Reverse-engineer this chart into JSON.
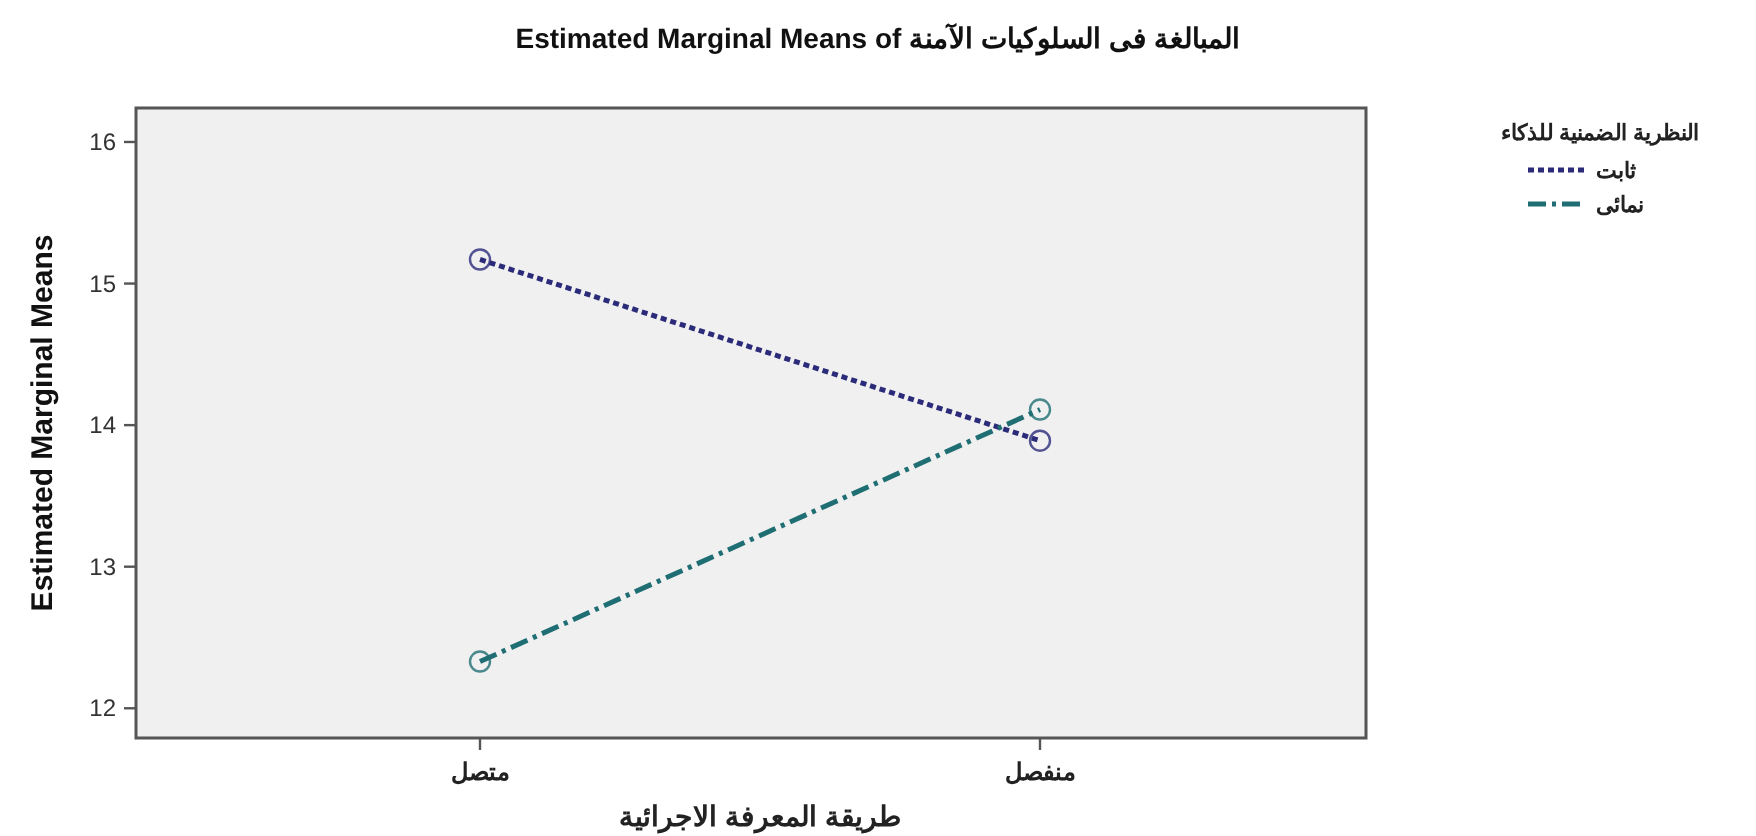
{
  "chart_data": {
    "type": "line",
    "title": "Estimated Marginal Means of المبالغة فى السلوكيات الآمنة",
    "xlabel": "طريقة المعرفة الاجرائية",
    "ylabel": "Estimated Marginal Means",
    "legend_title": "النظرية الضمنية للذكاء",
    "categories": [
      "متصل",
      "منفصل"
    ],
    "series": [
      {
        "name": "ثابت",
        "color": "#2b2b7a",
        "line_style": "dotted",
        "values": [
          15.17,
          13.89
        ]
      },
      {
        "name": "نمائى",
        "color": "#1f6e73",
        "line_style": "dashed",
        "values": [
          12.33,
          14.11
        ]
      }
    ],
    "ylim": [
      11.79,
      16.24
    ],
    "yticks": [
      12,
      13,
      14,
      15,
      16
    ],
    "grid": false,
    "legend": "right",
    "marker": "circle"
  }
}
